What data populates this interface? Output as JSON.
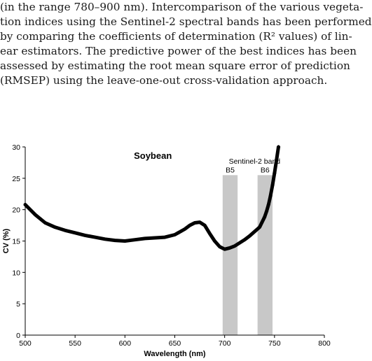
{
  "paragraph": {
    "lines": [
      "(in the range 780–900 nm). Intercomparison of the various vegeta-",
      "tion indices using the Sentinel-2 spectral bands has been performed",
      "by comparing the coefficients of determination (R² values) of lin-",
      "ear estimators. The predictive power of the best indices has been",
      "assessed by estimating the root mean square error of prediction",
      "(RMSEP) using the leave-one-out cross-validation approach."
    ]
  },
  "chart_data": {
    "type": "line",
    "title": "Soybean",
    "xlabel": "Wavelength (nm)",
    "ylabel": "CV (%)",
    "xlim": [
      500,
      800
    ],
    "ylim": [
      0,
      30
    ],
    "x_ticks": [
      "500",
      "550",
      "600",
      "650",
      "700",
      "750",
      "800"
    ],
    "y_ticks": [
      "0",
      "5",
      "10",
      "15",
      "20",
      "25",
      "30"
    ],
    "grid": false,
    "annotation": "Sentinel-2 band",
    "bands": [
      {
        "label": "B5",
        "x_range": [
          698,
          713
        ],
        "top": 25.5
      },
      {
        "label": "B6",
        "x_range": [
          733,
          748
        ],
        "top": 25.5
      }
    ],
    "series": [
      {
        "x": [
          500,
          510,
          520,
          530,
          540,
          550,
          560,
          570,
          580,
          590,
          600,
          610,
          620,
          630,
          640,
          650,
          660,
          665,
          670,
          675,
          680,
          685,
          690,
          695,
          700,
          705,
          710,
          715,
          720,
          725,
          730,
          735,
          740,
          742,
          744,
          746,
          748,
          750,
          752,
          754
        ],
        "y": [
          20.8,
          19.2,
          17.9,
          17.2,
          16.7,
          16.3,
          15.9,
          15.6,
          15.3,
          15.1,
          15.0,
          15.2,
          15.4,
          15.5,
          15.6,
          16.0,
          16.9,
          17.5,
          17.9,
          18.0,
          17.5,
          16.2,
          15.0,
          14.1,
          13.7,
          13.9,
          14.2,
          14.7,
          15.2,
          15.8,
          16.5,
          17.2,
          18.8,
          19.7,
          20.8,
          22.2,
          23.9,
          25.8,
          27.9,
          30.0
        ]
      }
    ]
  }
}
